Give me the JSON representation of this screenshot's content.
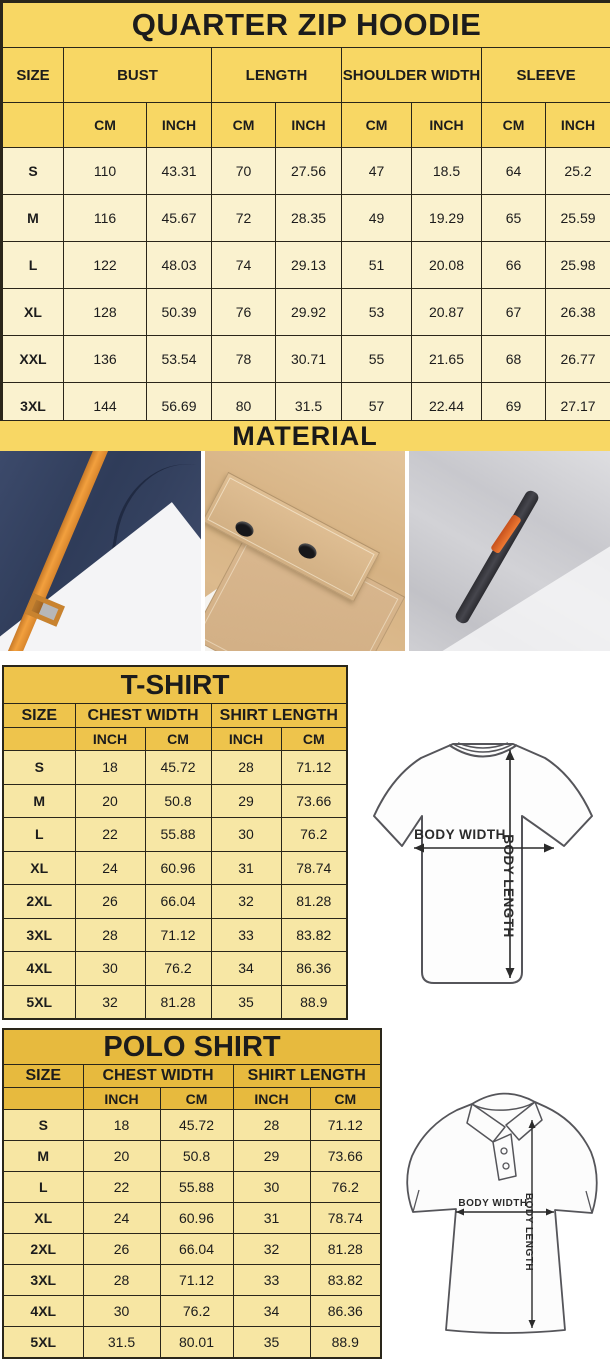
{
  "units": {
    "cm": "CM",
    "inch": "INCH"
  },
  "diagram_labels": {
    "body_width": "BODY WIDTH",
    "body_length": "BODY LENGTH"
  },
  "colors": {
    "hoodie_header_yellow": "#f8d764",
    "hoodie_cell_cream": "#faf2cf",
    "tshirt_header_gold": "#eec44c",
    "polo_header_gold": "#e7ba3e",
    "small_table_cell_yellow": "#f7e7a5",
    "table_border": "#2a261a",
    "strap_orange": "#f2a03e",
    "zipper_pull_orange": "#ef7a33",
    "fabric_navy": "#2f3c59",
    "fabric_khaki": "#d6b283",
    "fabric_gray": "#c8c8cd"
  },
  "hoodie": {
    "title": "QUARTER ZIP HOODIE",
    "size_col": "SIZE",
    "groups": [
      "BUST",
      "LENGTH",
      "SHOULDER WIDTH",
      "SLEEVE"
    ],
    "rows": [
      {
        "size": "S",
        "values": [
          "110",
          "43.31",
          "70",
          "27.56",
          "47",
          "18.5",
          "64",
          "25.2"
        ]
      },
      {
        "size": "M",
        "values": [
          "116",
          "45.67",
          "72",
          "28.35",
          "49",
          "19.29",
          "65",
          "25.59"
        ]
      },
      {
        "size": "L",
        "values": [
          "122",
          "48.03",
          "74",
          "29.13",
          "51",
          "20.08",
          "66",
          "25.98"
        ]
      },
      {
        "size": "XL",
        "values": [
          "128",
          "50.39",
          "76",
          "29.92",
          "53",
          "20.87",
          "67",
          "26.38"
        ]
      },
      {
        "size": "XXL",
        "values": [
          "136",
          "53.54",
          "78",
          "30.71",
          "55",
          "21.65",
          "68",
          "26.77"
        ]
      },
      {
        "size": "3XL",
        "values": [
          "144",
          "56.69",
          "80",
          "31.5",
          "57",
          "22.44",
          "69",
          "27.17"
        ]
      }
    ]
  },
  "material": {
    "title": "MATERIAL",
    "photos": [
      {
        "name": "navy-fleece-with-orange-drawstring"
      },
      {
        "name": "khaki-fabric-pocket-with-snap-buttons"
      },
      {
        "name": "gray-fleece-zipper-with-orange-pull"
      }
    ]
  },
  "tshirt": {
    "title": "T-SHIRT",
    "size_col": "SIZE",
    "groups": [
      "CHEST WIDTH",
      "SHIRT LENGTH"
    ],
    "rows": [
      {
        "size": "S",
        "values": [
          "18",
          "45.72",
          "28",
          "71.12"
        ]
      },
      {
        "size": "M",
        "values": [
          "20",
          "50.8",
          "29",
          "73.66"
        ]
      },
      {
        "size": "L",
        "values": [
          "22",
          "55.88",
          "30",
          "76.2"
        ]
      },
      {
        "size": "XL",
        "values": [
          "24",
          "60.96",
          "31",
          "78.74"
        ]
      },
      {
        "size": "2XL",
        "values": [
          "26",
          "66.04",
          "32",
          "81.28"
        ]
      },
      {
        "size": "3XL",
        "values": [
          "28",
          "71.12",
          "33",
          "83.82"
        ]
      },
      {
        "size": "4XL",
        "values": [
          "30",
          "76.2",
          "34",
          "86.36"
        ]
      },
      {
        "size": "5XL",
        "values": [
          "32",
          "81.28",
          "35",
          "88.9"
        ]
      }
    ]
  },
  "polo": {
    "title": "POLO SHIRT",
    "size_col": "SIZE",
    "groups": [
      "CHEST WIDTH",
      "SHIRT LENGTH"
    ],
    "rows": [
      {
        "size": "S",
        "values": [
          "18",
          "45.72",
          "28",
          "71.12"
        ]
      },
      {
        "size": "M",
        "values": [
          "20",
          "50.8",
          "29",
          "73.66"
        ]
      },
      {
        "size": "L",
        "values": [
          "22",
          "55.88",
          "30",
          "76.2"
        ]
      },
      {
        "size": "XL",
        "values": [
          "24",
          "60.96",
          "31",
          "78.74"
        ]
      },
      {
        "size": "2XL",
        "values": [
          "26",
          "66.04",
          "32",
          "81.28"
        ]
      },
      {
        "size": "3XL",
        "values": [
          "28",
          "71.12",
          "33",
          "83.82"
        ]
      },
      {
        "size": "4XL",
        "values": [
          "30",
          "76.2",
          "34",
          "86.36"
        ]
      },
      {
        "size": "5XL",
        "values": [
          "31.5",
          "80.01",
          "35",
          "88.9"
        ]
      }
    ]
  }
}
